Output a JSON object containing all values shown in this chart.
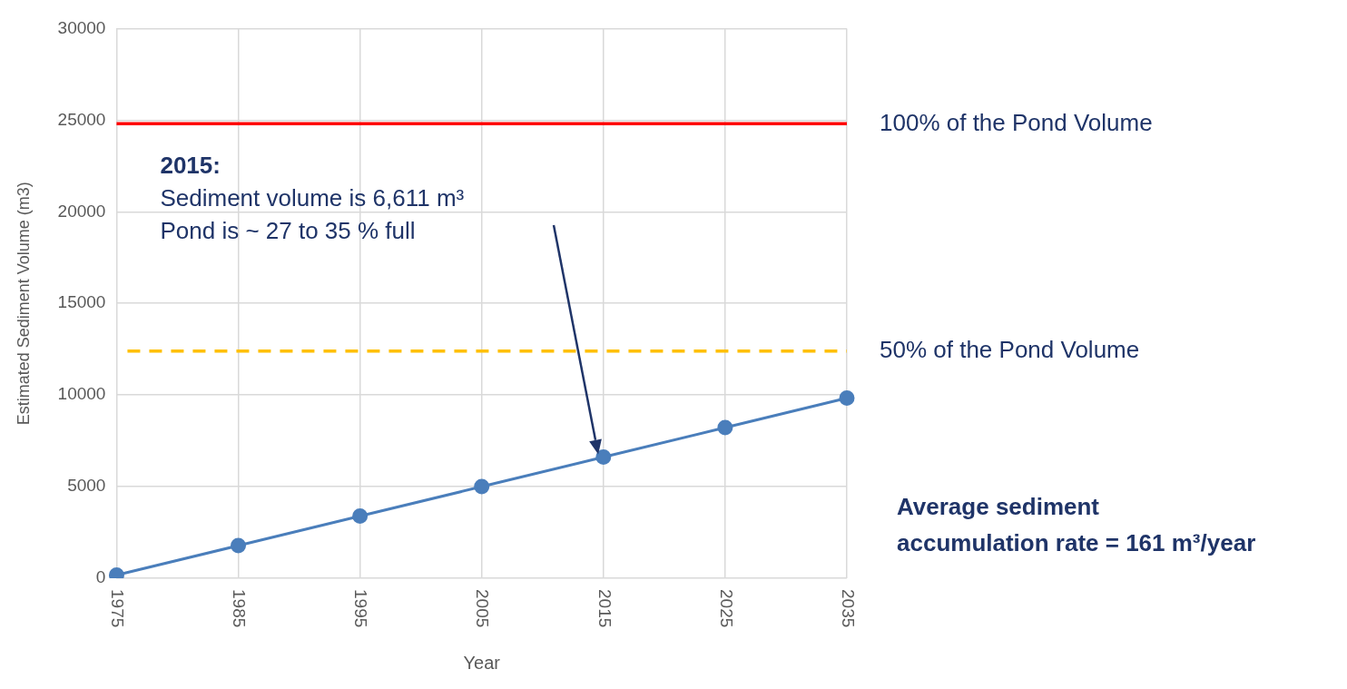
{
  "chart_data": {
    "type": "line",
    "xlabel": "Year",
    "ylabel": "Estimated Sediment Volume (m3)",
    "categories": [
      "1975",
      "1985",
      "1995",
      "2005",
      "2015",
      "2025",
      "2035"
    ],
    "series": [
      {
        "color": "#4a7ebb",
        "values": [
          170,
          1780,
          3390,
          5000,
          6610,
          8220,
          9830
        ]
      }
    ],
    "ylim": [
      0,
      30000
    ],
    "yticks": [
      0,
      5000,
      10000,
      15000,
      20000,
      25000,
      30000
    ],
    "grid": true,
    "legend": false,
    "marker": "circle",
    "ref_lines": [
      {
        "axis": "y",
        "value": 24800,
        "label": "100% of the Pond Volume",
        "color": "#ff0000",
        "line_style": "solid"
      },
      {
        "axis": "y",
        "value": 12400,
        "label": "50% of the Pond Volume",
        "color": "#ffc000",
        "line_style": "dashed"
      }
    ],
    "annotations": [
      "2015:\nSediment volume is 6,611 m³\nPond is ~ 27 to 35 % full",
      "Average sediment\naccumulation rate = 161 m³/year"
    ]
  }
}
